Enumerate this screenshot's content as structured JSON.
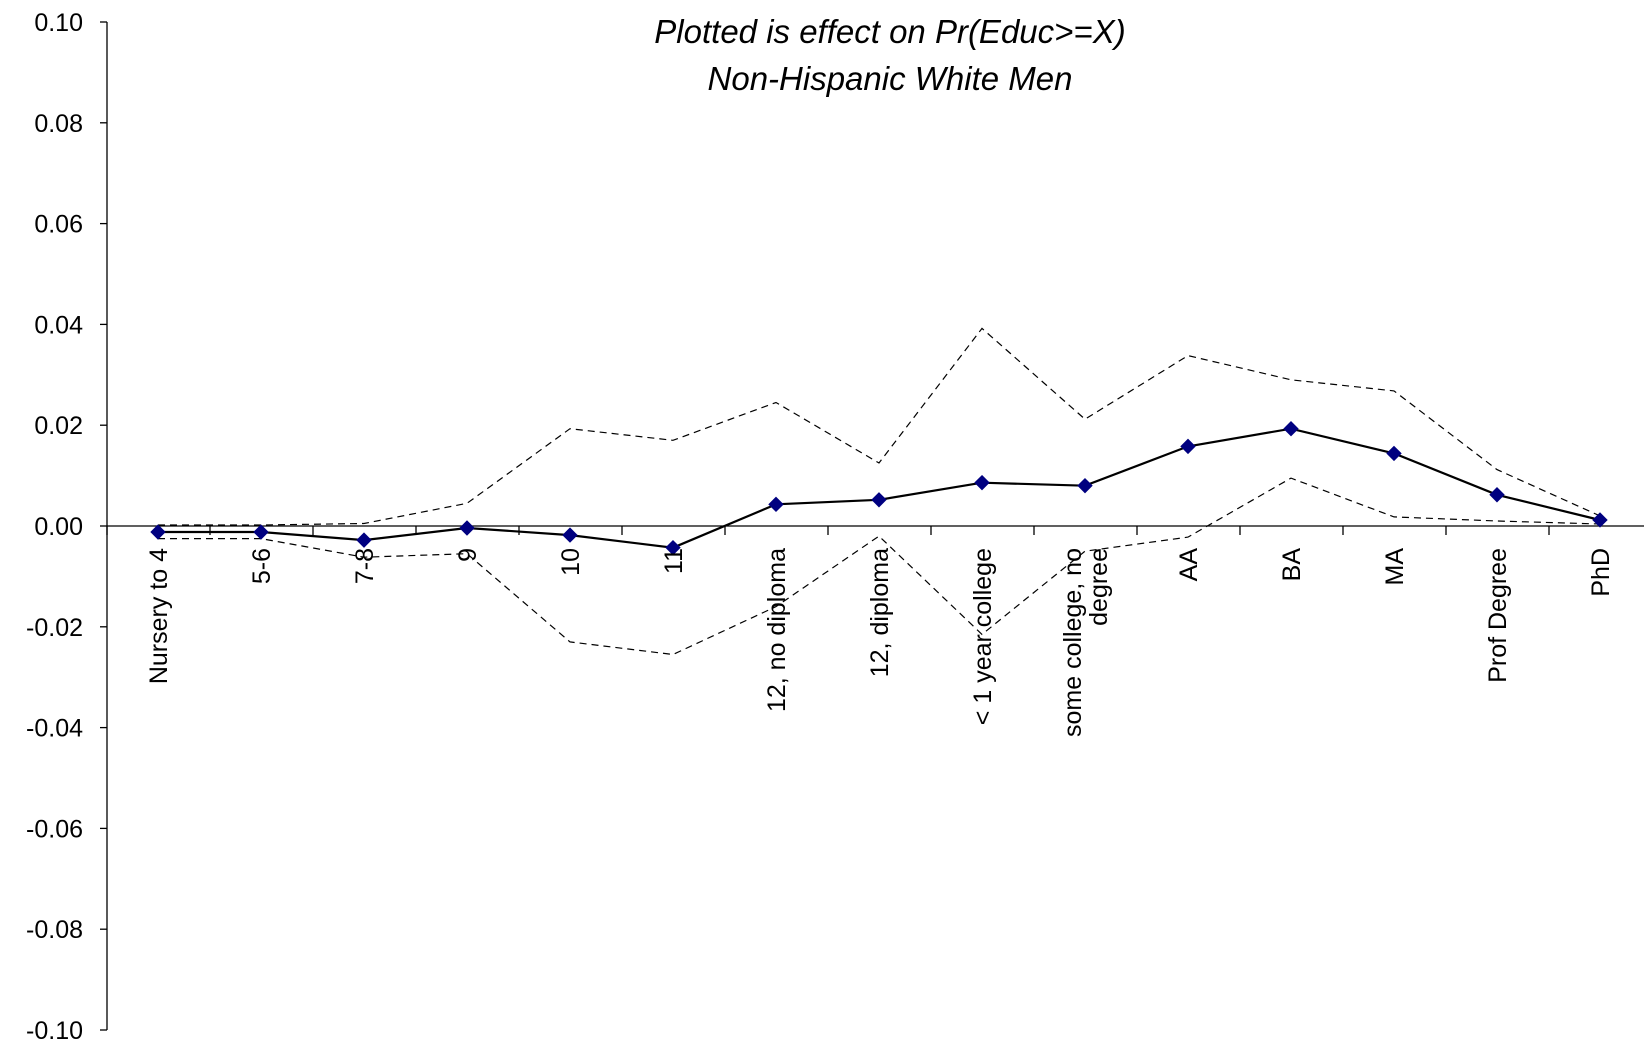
{
  "chart_data": {
    "type": "line",
    "title": "Plotted is effect on Pr(Educ>=X)",
    "subtitle": "Non-Hispanic White Men",
    "xlabel": "",
    "ylabel": "",
    "ylim": [
      -0.1,
      0.1
    ],
    "yticks": [
      "0.10",
      "0.08",
      "0.06",
      "0.04",
      "0.02",
      "0.00",
      "-0.02",
      "-0.04",
      "-0.06",
      "-0.08",
      "-0.10"
    ],
    "grid": false,
    "categories": [
      [
        "Nursery to 4"
      ],
      [
        "5-6"
      ],
      [
        "7-8"
      ],
      [
        "9"
      ],
      [
        "10"
      ],
      [
        "11"
      ],
      [
        "12, no diploma"
      ],
      [
        "12, diploma"
      ],
      [
        "< 1 year college"
      ],
      [
        "some college, no",
        "degree"
      ],
      [
        "AA"
      ],
      [
        "BA"
      ],
      [
        "MA"
      ],
      [
        "Prof Degree"
      ],
      [
        "PhD"
      ]
    ],
    "series": [
      {
        "style": "solid-diamond",
        "color": "#000080",
        "line_color": "#000000",
        "values": [
          -0.0012,
          -0.0012,
          -0.0028,
          -0.0004,
          -0.0018,
          -0.0043,
          0.0043,
          0.0052,
          0.0086,
          0.008,
          0.0158,
          0.0193,
          0.0144,
          0.0062,
          0.0012
        ]
      },
      {
        "style": "dashed",
        "color": "#000000",
        "values": [
          0.0002,
          0.0002,
          0.0005,
          0.0045,
          0.0193,
          0.017,
          0.0245,
          0.0125,
          0.0392,
          0.0212,
          0.0338,
          0.029,
          0.0268,
          0.0112,
          0.002
        ]
      },
      {
        "style": "dashed",
        "color": "#000000",
        "values": [
          -0.0025,
          -0.0025,
          -0.0062,
          -0.0055,
          -0.023,
          -0.0255,
          -0.016,
          -0.002,
          -0.0215,
          -0.005,
          -0.0022,
          0.0095,
          0.0018,
          0.001,
          0.0004
        ]
      }
    ]
  }
}
